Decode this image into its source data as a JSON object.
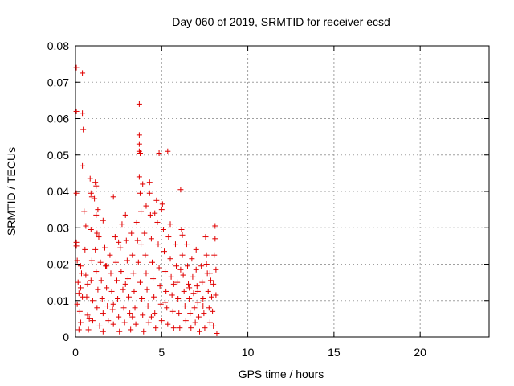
{
  "chart_data": {
    "type": "scatter",
    "title": "Day 060 of 2019, SRMTID for receiver ecsd",
    "xlabel": "GPS time / hours",
    "ylabel": "SRMTID / TECUs",
    "xlim": [
      0,
      24
    ],
    "ylim": [
      0,
      0.08
    ],
    "xticks": [
      0,
      5,
      10,
      15,
      20
    ],
    "xtick_labels": [
      "0",
      "5",
      "10",
      "15",
      "20"
    ],
    "yticks": [
      0,
      0.01,
      0.02,
      0.03,
      0.04,
      0.05,
      0.06,
      0.07,
      0.08
    ],
    "ytick_labels": [
      "0",
      "0.01",
      "0.02",
      "0.03",
      "0.04",
      "0.05",
      "0.06",
      "0.07",
      "0.08"
    ],
    "grid": true,
    "marker": "+",
    "color": "#e00000",
    "series": [
      {
        "name": "SRMTID",
        "points": [
          [
            0.05,
            0.074
          ],
          [
            0.05,
            0.062
          ],
          [
            0.4,
            0.0725
          ],
          [
            0.4,
            0.0615
          ],
          [
            0.45,
            0.057
          ],
          [
            0.4,
            0.047
          ],
          [
            3.7,
            0.064
          ],
          [
            3.7,
            0.0555
          ],
          [
            3.7,
            0.053
          ],
          [
            3.7,
            0.051
          ],
          [
            3.75,
            0.0505
          ],
          [
            4.85,
            0.0505
          ],
          [
            5.35,
            0.051
          ],
          [
            0.05,
            0.0395
          ],
          [
            0.05,
            0.026
          ],
          [
            0.05,
            0.025
          ],
          [
            0.1,
            0.021
          ],
          [
            0.15,
            0.015
          ],
          [
            0.2,
            0.012
          ],
          [
            0.1,
            0.009
          ],
          [
            0.3,
            0.0195
          ],
          [
            0.35,
            0.0175
          ],
          [
            0.3,
            0.0135
          ],
          [
            0.4,
            0.011
          ],
          [
            0.25,
            0.007
          ],
          [
            0.3,
            0.004
          ],
          [
            0.5,
            0.0345
          ],
          [
            0.6,
            0.0305
          ],
          [
            0.55,
            0.024
          ],
          [
            0.6,
            0.017
          ],
          [
            0.7,
            0.0145
          ],
          [
            0.65,
            0.011
          ],
          [
            0.7,
            0.006
          ],
          [
            0.75,
            0.002
          ],
          [
            0.85,
            0.0435
          ],
          [
            0.9,
            0.0395
          ],
          [
            0.95,
            0.0385
          ],
          [
            0.9,
            0.0295
          ],
          [
            0.95,
            0.021
          ],
          [
            0.9,
            0.0155
          ],
          [
            1.0,
            0.01
          ],
          [
            1.0,
            0.0045
          ],
          [
            1.15,
            0.0425
          ],
          [
            1.2,
            0.0415
          ],
          [
            1.2,
            0.0335
          ],
          [
            1.25,
            0.0285
          ],
          [
            1.15,
            0.024
          ],
          [
            1.2,
            0.018
          ],
          [
            1.3,
            0.013
          ],
          [
            1.25,
            0.008
          ],
          [
            1.4,
            0.003
          ],
          [
            1.35,
            0.0275
          ],
          [
            1.45,
            0.0205
          ],
          [
            1.5,
            0.0155
          ],
          [
            1.55,
            0.0105
          ],
          [
            1.6,
            0.0065
          ],
          [
            1.6,
            0.0015
          ],
          [
            1.7,
            0.0245
          ],
          [
            1.75,
            0.0195
          ],
          [
            1.8,
            0.0135
          ],
          [
            1.85,
            0.0085
          ],
          [
            1.9,
            0.0045
          ],
          [
            2.0,
            0.0225
          ],
          [
            2.05,
            0.0175
          ],
          [
            2.1,
            0.0125
          ],
          [
            2.15,
            0.0075
          ],
          [
            2.2,
            0.0035
          ],
          [
            2.2,
            0.0385
          ],
          [
            2.3,
            0.0275
          ],
          [
            2.35,
            0.0205
          ],
          [
            2.4,
            0.0155
          ],
          [
            2.45,
            0.0105
          ],
          [
            2.5,
            0.0055
          ],
          [
            2.55,
            0.0015
          ],
          [
            2.6,
            0.0245
          ],
          [
            2.7,
            0.031
          ],
          [
            2.65,
            0.018
          ],
          [
            2.75,
            0.013
          ],
          [
            2.8,
            0.008
          ],
          [
            2.85,
            0.004
          ],
          [
            2.9,
            0.0335
          ],
          [
            2.95,
            0.0265
          ],
          [
            3.0,
            0.021
          ],
          [
            3.05,
            0.016
          ],
          [
            3.1,
            0.011
          ],
          [
            3.15,
            0.0065
          ],
          [
            3.2,
            0.002
          ],
          [
            3.25,
            0.0285
          ],
          [
            3.3,
            0.0225
          ],
          [
            3.35,
            0.0175
          ],
          [
            3.4,
            0.0125
          ],
          [
            3.45,
            0.008
          ],
          [
            3.5,
            0.0035
          ],
          [
            3.55,
            0.0315
          ],
          [
            3.6,
            0.0265
          ],
          [
            3.65,
            0.0205
          ],
          [
            3.7,
            0.044
          ],
          [
            3.75,
            0.0395
          ],
          [
            3.8,
            0.0345
          ],
          [
            3.75,
            0.015
          ],
          [
            3.85,
            0.0105
          ],
          [
            3.9,
            0.006
          ],
          [
            3.95,
            0.0015
          ],
          [
            4.0,
            0.0285
          ],
          [
            4.05,
            0.0225
          ],
          [
            4.1,
            0.0175
          ],
          [
            4.15,
            0.013
          ],
          [
            4.2,
            0.0085
          ],
          [
            4.25,
            0.004
          ],
          [
            4.3,
            0.0425
          ],
          [
            4.3,
            0.0395
          ],
          [
            4.35,
            0.0335
          ],
          [
            4.4,
            0.027
          ],
          [
            4.45,
            0.0205
          ],
          [
            4.5,
            0.016
          ],
          [
            4.55,
            0.011
          ],
          [
            4.6,
            0.0065
          ],
          [
            4.65,
            0.0025
          ],
          [
            4.7,
            0.0375
          ],
          [
            4.75,
            0.0315
          ],
          [
            4.8,
            0.0255
          ],
          [
            4.85,
            0.019
          ],
          [
            4.9,
            0.014
          ],
          [
            4.95,
            0.009
          ],
          [
            5.0,
            0.0045
          ],
          [
            5.05,
            0.0365
          ],
          [
            5.1,
            0.0295
          ],
          [
            5.15,
            0.0235
          ],
          [
            5.2,
            0.018
          ],
          [
            5.25,
            0.0125
          ],
          [
            5.3,
            0.008
          ],
          [
            5.35,
            0.0035
          ],
          [
            5.4,
            0.0275
          ],
          [
            5.5,
            0.0215
          ],
          [
            5.55,
            0.0165
          ],
          [
            5.6,
            0.0115
          ],
          [
            5.65,
            0.007
          ],
          [
            5.7,
            0.0025
          ],
          [
            5.8,
            0.0255
          ],
          [
            5.85,
            0.0195
          ],
          [
            5.9,
            0.015
          ],
          [
            5.95,
            0.0105
          ],
          [
            6.0,
            0.0065
          ],
          [
            6.05,
            0.0025
          ],
          [
            6.1,
            0.0405
          ],
          [
            6.15,
            0.0295
          ],
          [
            6.2,
            0.0225
          ],
          [
            6.25,
            0.017
          ],
          [
            6.3,
            0.0125
          ],
          [
            6.35,
            0.0085
          ],
          [
            6.4,
            0.0045
          ],
          [
            6.45,
            0.0255
          ],
          [
            6.5,
            0.0195
          ],
          [
            6.55,
            0.0145
          ],
          [
            6.6,
            0.0105
          ],
          [
            6.65,
            0.0065
          ],
          [
            6.7,
            0.0025
          ],
          [
            6.75,
            0.0215
          ],
          [
            6.8,
            0.0165
          ],
          [
            6.85,
            0.012
          ],
          [
            6.9,
            0.008
          ],
          [
            6.95,
            0.004
          ],
          [
            7.0,
            0.0185
          ],
          [
            7.05,
            0.014
          ],
          [
            7.1,
            0.0095
          ],
          [
            7.15,
            0.0055
          ],
          [
            7.2,
            0.0015
          ],
          [
            7.3,
            0.0195
          ],
          [
            7.35,
            0.015
          ],
          [
            7.4,
            0.0105
          ],
          [
            7.45,
            0.0065
          ],
          [
            7.5,
            0.0025
          ],
          [
            7.55,
            0.0275
          ],
          [
            7.6,
            0.0225
          ],
          [
            7.65,
            0.0175
          ],
          [
            7.7,
            0.0125
          ],
          [
            7.75,
            0.008
          ],
          [
            7.8,
            0.004
          ],
          [
            7.85,
            0.0155
          ],
          [
            7.9,
            0.011
          ],
          [
            7.95,
            0.007
          ],
          [
            8.0,
            0.003
          ],
          [
            8.05,
            0.0225
          ],
          [
            8.1,
            0.0305
          ],
          [
            8.1,
            0.027
          ],
          [
            8.15,
            0.0185
          ],
          [
            8.15,
            0.0115
          ],
          [
            8.2,
            0.001
          ],
          [
            1.1,
            0.038
          ],
          [
            1.3,
            0.035
          ],
          [
            1.6,
            0.032
          ],
          [
            2.5,
            0.026
          ],
          [
            3.9,
            0.042
          ],
          [
            4.1,
            0.036
          ],
          [
            4.6,
            0.034
          ],
          [
            5.0,
            0.035
          ],
          [
            5.5,
            0.031
          ],
          [
            6.2,
            0.028
          ],
          [
            7.0,
            0.024
          ],
          [
            7.6,
            0.02
          ],
          [
            0.2,
            0.002
          ],
          [
            0.8,
            0.005
          ],
          [
            1.8,
            0.0195
          ],
          [
            2.2,
            0.009
          ],
          [
            2.9,
            0.0145
          ],
          [
            3.3,
            0.0055
          ],
          [
            3.8,
            0.0255
          ],
          [
            4.4,
            0.0055
          ],
          [
            5.2,
            0.0095
          ],
          [
            5.7,
            0.0145
          ],
          [
            6.1,
            0.0185
          ],
          [
            6.6,
            0.0135
          ],
          [
            7.1,
            0.0125
          ],
          [
            7.4,
            0.0085
          ],
          [
            7.8,
            0.0175
          ],
          [
            8.0,
            0.0145
          ]
        ]
      }
    ]
  }
}
